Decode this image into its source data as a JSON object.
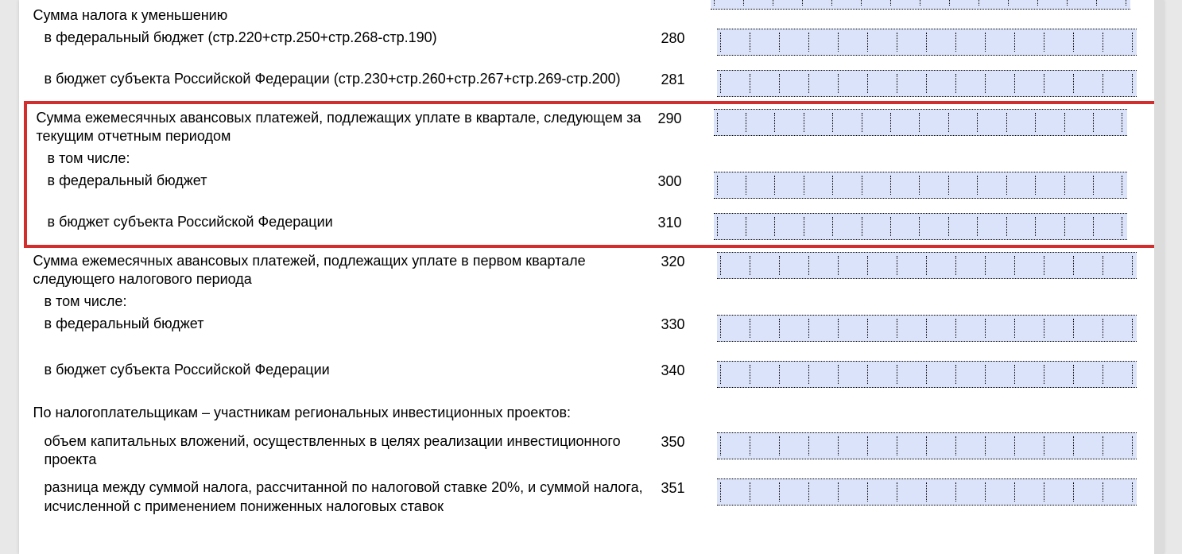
{
  "cell_count": 15,
  "colors": {
    "field_bg": "#dbe3fa",
    "highlight_border": "#d22e2e",
    "page_bg": "#ffffff",
    "text": "#000000"
  },
  "rows": [
    {
      "id": "section_tax_decrease",
      "label": "Сумма налога к уменьшению",
      "code": "",
      "indent": 0,
      "field": false
    },
    {
      "id": "r280",
      "label": "в федеральный бюджет (стр.220+стр.250+стр.268-стр.190)",
      "code": "280",
      "indent": 1,
      "field": true
    },
    {
      "id": "r281",
      "label": "в бюджет субъекта Российской Федерации (стр.230+стр.260+стр.267+стр.269-стр.200)",
      "code": "281",
      "indent": 1,
      "field": true
    },
    {
      "id": "r290",
      "label": "Сумма ежемесячных авансовых платежей, подлежащих уплате в квартале, следующем за текущим отчетным периодом",
      "code": "290",
      "indent": 0,
      "field": true,
      "hl": true
    },
    {
      "id": "incl1",
      "label": "в том числе:",
      "code": "",
      "indent": 1,
      "field": false,
      "hl": true
    },
    {
      "id": "r300",
      "label": "в федеральный бюджет",
      "code": "300",
      "indent": 1,
      "field": true,
      "hl": true
    },
    {
      "id": "r310",
      "label": "в бюджет субъекта Российской Федерации",
      "code": "310",
      "indent": 1,
      "field": true,
      "hl": true
    },
    {
      "id": "r320",
      "label": "Сумма ежемесячных авансовых платежей, подлежащих уплате в первом квартале следующего налогового периода",
      "code": "320",
      "indent": 0,
      "field": true
    },
    {
      "id": "incl2",
      "label": "в том числе:",
      "code": "",
      "indent": 1,
      "field": false
    },
    {
      "id": "r330",
      "label": "в федеральный бюджет",
      "code": "330",
      "indent": 1,
      "field": true
    },
    {
      "id": "r340",
      "label": "в бюджет субъекта Российской Федерации",
      "code": "340",
      "indent": 1,
      "field": true
    },
    {
      "id": "section_rip",
      "label": "По налогоплательщикам – участникам региональных инвестиционных проектов:",
      "code": "",
      "indent": 0,
      "field": false
    },
    {
      "id": "r350",
      "label": "объем капитальных вложений, осуществленных в целях реализации инвестиционного проекта",
      "code": "350",
      "indent": 1,
      "field": true
    },
    {
      "id": "r351",
      "label": "разница между суммой налога, рассчитанной по налоговой ставке 20%, и суммой налога, исчисленной с применением пониженных налоговых ставок",
      "code": "351",
      "indent": 1,
      "field": true
    }
  ]
}
